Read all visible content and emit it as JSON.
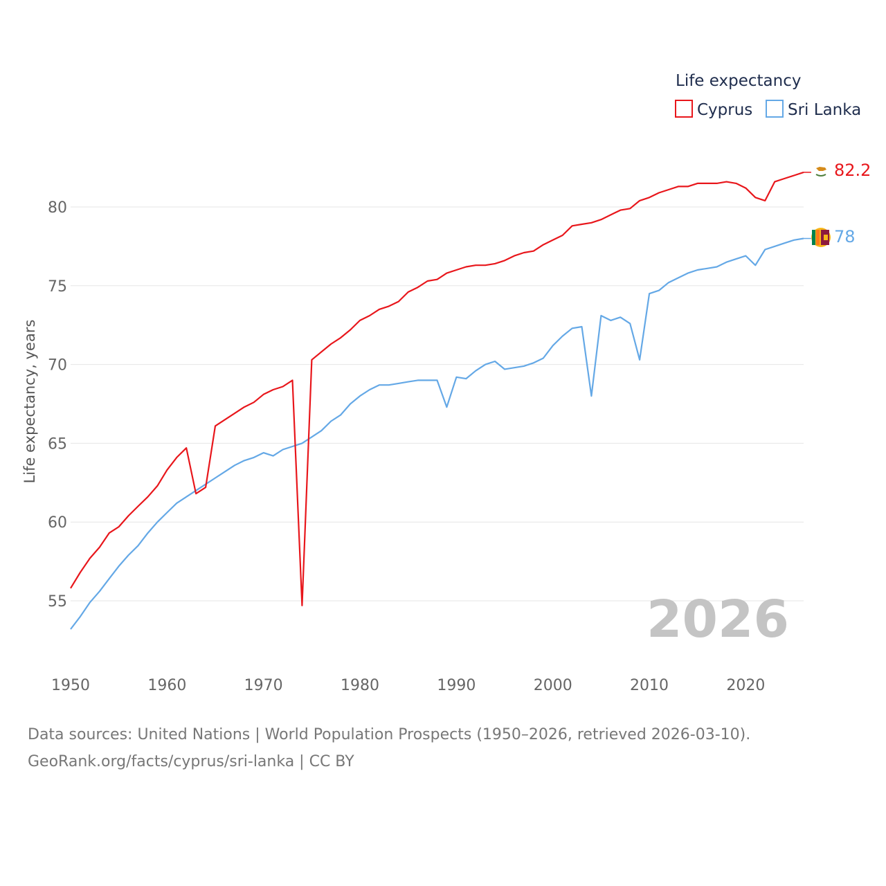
{
  "colors": {
    "cyprus": "#e8161b",
    "sri_lanka": "#64a8e6",
    "grid": "#e6e6e6"
  },
  "chart_data": {
    "type": "line",
    "title": "",
    "xlabel": "",
    "ylabel": "Life expectancy, years",
    "xlim": [
      1950,
      2026
    ],
    "ylim": [
      52,
      84
    ],
    "x_ticks": [
      1950,
      1960,
      1970,
      1980,
      1990,
      2000,
      2010,
      2020
    ],
    "y_ticks": [
      55,
      60,
      65,
      70,
      75,
      80
    ],
    "legend_title": "Life expectancy",
    "legend_position": "top-right",
    "current_year": "2026",
    "x": [
      1950,
      1951,
      1952,
      1953,
      1954,
      1955,
      1956,
      1957,
      1958,
      1959,
      1960,
      1961,
      1962,
      1963,
      1964,
      1965,
      1966,
      1967,
      1968,
      1969,
      1970,
      1971,
      1972,
      1973,
      1974,
      1975,
      1976,
      1977,
      1978,
      1979,
      1980,
      1981,
      1982,
      1983,
      1984,
      1985,
      1986,
      1987,
      1988,
      1989,
      1990,
      1991,
      1992,
      1993,
      1994,
      1995,
      1996,
      1997,
      1998,
      1999,
      2000,
      2001,
      2002,
      2003,
      2004,
      2005,
      2006,
      2007,
      2008,
      2009,
      2010,
      2011,
      2012,
      2013,
      2014,
      2015,
      2016,
      2017,
      2018,
      2019,
      2020,
      2021,
      2022,
      2023,
      2024,
      2025,
      2026
    ],
    "series": [
      {
        "name": "Cyprus",
        "end_label": "82.2",
        "values": [
          55.8,
          56.8,
          57.7,
          58.4,
          59.3,
          59.7,
          60.4,
          61.0,
          61.6,
          62.3,
          63.3,
          64.1,
          64.7,
          61.8,
          62.2,
          66.1,
          66.5,
          66.9,
          67.3,
          67.6,
          68.1,
          68.4,
          68.6,
          69.0,
          54.7,
          70.3,
          70.8,
          71.3,
          71.7,
          72.2,
          72.8,
          73.1,
          73.5,
          73.7,
          74.0,
          74.6,
          74.9,
          75.3,
          75.4,
          75.8,
          76.0,
          76.2,
          76.3,
          76.3,
          76.4,
          76.6,
          76.9,
          77.1,
          77.2,
          77.6,
          77.9,
          78.2,
          78.8,
          78.9,
          79.0,
          79.2,
          79.5,
          79.8,
          79.9,
          80.4,
          80.6,
          80.9,
          81.1,
          81.3,
          81.3,
          81.5,
          81.5,
          81.5,
          81.6,
          81.5,
          81.2,
          80.6,
          80.4,
          81.6,
          81.8,
          82.0,
          82.2
        ]
      },
      {
        "name": "Sri Lanka",
        "end_label": "78",
        "values": [
          53.2,
          54.0,
          54.9,
          55.6,
          56.4,
          57.2,
          57.9,
          58.5,
          59.3,
          60.0,
          60.6,
          61.2,
          61.6,
          62.0,
          62.4,
          62.8,
          63.2,
          63.6,
          63.9,
          64.1,
          64.4,
          64.2,
          64.6,
          64.8,
          65.0,
          65.4,
          65.8,
          66.4,
          66.8,
          67.5,
          68.0,
          68.4,
          68.7,
          68.7,
          68.8,
          68.9,
          69.0,
          69.0,
          69.0,
          67.3,
          69.2,
          69.1,
          69.6,
          70.0,
          70.2,
          69.7,
          69.8,
          69.9,
          70.1,
          70.4,
          71.2,
          71.8,
          72.3,
          72.4,
          68.0,
          73.1,
          72.8,
          73.0,
          72.6,
          70.3,
          74.5,
          74.7,
          75.2,
          75.5,
          75.8,
          76.0,
          76.1,
          76.2,
          76.5,
          76.7,
          76.9,
          76.3,
          77.3,
          77.5,
          77.7,
          77.9,
          78.0
        ]
      }
    ]
  },
  "footer": {
    "line1": "Data sources: United Nations | World Population Prospects (1950–2026, retrieved 2026-03-10).",
    "line2": "GeoRank.org/facts/cyprus/sri-lanka | CC BY"
  }
}
